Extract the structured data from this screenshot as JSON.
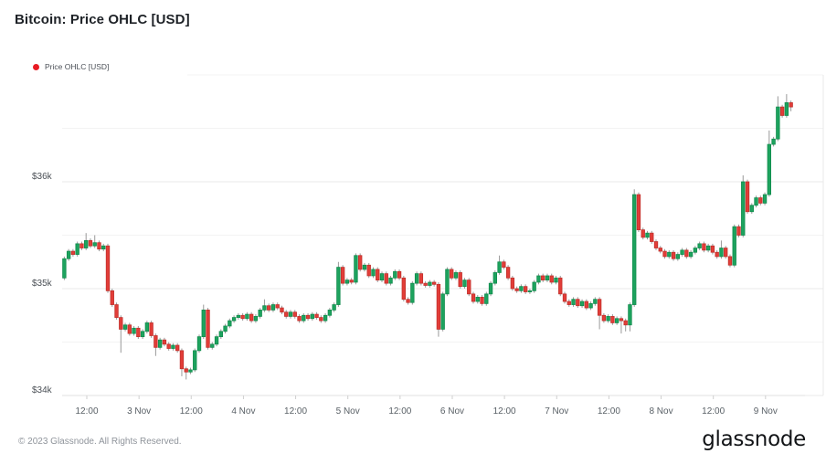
{
  "header": {
    "title": "Bitcoin: Price OHLC [USD]"
  },
  "legend": {
    "label": "Price OHLC [USD]",
    "dot_color": "#e81c24"
  },
  "footer": {
    "copyright": "© 2023 Glassnode. All Rights Reserved.",
    "brand": "glassnode"
  },
  "chart_data": {
    "type": "candlestick",
    "title": "Bitcoin: Price OHLC [USD]",
    "series_name": "Price OHLC [USD]",
    "unit": "USD thousands",
    "candle_interval_hours": 1,
    "x_tick_labels": [
      "12:00",
      "3 Nov",
      "12:00",
      "4 Nov",
      "12:00",
      "5 Nov",
      "12:00",
      "6 Nov",
      "12:00",
      "7 Nov",
      "12:00",
      "8 Nov",
      "12:00",
      "9 Nov"
    ],
    "y_axis": {
      "labels": [
        "$36k",
        "$35k",
        "$34k"
      ],
      "prices": [
        36,
        35,
        34
      ]
    },
    "minor_gridline_prices": [
      34.5,
      35.5,
      36.5,
      37
    ],
    "ylim": [
      33.95,
      37.1
    ],
    "grid": true,
    "legend_position": "top-left",
    "colors": {
      "up": "#1da35e",
      "up_border": "#0f8a4b",
      "down": "#e23d38",
      "down_border": "#bf2f2a",
      "wick": "#999999",
      "grid_major": "#e9e9e9",
      "grid_minor": "#f3f3f3",
      "axis_line": "#e2e2e2",
      "tick": "#cfcfcf",
      "axis_text": "#596066",
      "y_text": "#4a4f55"
    },
    "candles": [
      [
        35.1,
        35.3,
        35.08,
        35.28
      ],
      [
        35.28,
        35.37,
        35.26,
        35.35
      ],
      [
        35.35,
        35.37,
        35.3,
        35.32
      ],
      [
        35.32,
        35.44,
        35.3,
        35.42
      ],
      [
        35.42,
        35.44,
        35.36,
        35.38
      ],
      [
        35.38,
        35.52,
        35.36,
        35.45
      ],
      [
        35.45,
        35.47,
        35.38,
        35.4
      ],
      [
        35.4,
        35.5,
        35.38,
        35.43
      ],
      [
        35.43,
        35.45,
        35.35,
        35.37
      ],
      [
        35.37,
        35.42,
        35.35,
        35.4
      ],
      [
        35.4,
        35.42,
        34.96,
        34.98
      ],
      [
        34.98,
        35.0,
        34.83,
        34.85
      ],
      [
        34.85,
        34.87,
        34.71,
        34.73
      ],
      [
        34.73,
        34.75,
        34.4,
        34.62
      ],
      [
        34.62,
        34.68,
        34.6,
        34.66
      ],
      [
        34.66,
        34.68,
        34.56,
        34.58
      ],
      [
        34.58,
        34.65,
        34.56,
        34.63
      ],
      [
        34.63,
        34.65,
        34.53,
        34.55
      ],
      [
        34.55,
        34.62,
        34.53,
        34.6
      ],
      [
        34.6,
        34.7,
        34.58,
        34.68
      ],
      [
        34.68,
        34.7,
        34.54,
        34.56
      ],
      [
        34.56,
        34.58,
        34.37,
        34.45
      ],
      [
        34.45,
        34.54,
        34.43,
        34.52
      ],
      [
        34.52,
        34.54,
        34.46,
        34.48
      ],
      [
        34.48,
        34.5,
        34.42,
        34.44
      ],
      [
        34.44,
        34.49,
        34.42,
        34.47
      ],
      [
        34.47,
        34.49,
        34.4,
        34.42
      ],
      [
        34.42,
        34.44,
        34.18,
        34.25
      ],
      [
        34.25,
        34.27,
        34.15,
        34.22
      ],
      [
        34.22,
        34.26,
        34.2,
        34.24
      ],
      [
        34.24,
        34.44,
        34.22,
        34.42
      ],
      [
        34.42,
        34.57,
        34.4,
        34.55
      ],
      [
        34.55,
        34.85,
        34.53,
        34.8
      ],
      [
        34.8,
        34.82,
        34.43,
        34.45
      ],
      [
        34.45,
        34.5,
        34.43,
        34.48
      ],
      [
        34.48,
        34.57,
        34.46,
        34.55
      ],
      [
        34.55,
        34.62,
        34.53,
        34.6
      ],
      [
        34.6,
        34.67,
        34.58,
        34.65
      ],
      [
        34.65,
        34.72,
        34.63,
        34.7
      ],
      [
        34.7,
        34.75,
        34.68,
        34.73
      ],
      [
        34.73,
        34.77,
        34.71,
        34.75
      ],
      [
        34.75,
        34.77,
        34.7,
        34.72
      ],
      [
        34.72,
        34.78,
        34.7,
        34.76
      ],
      [
        34.76,
        34.78,
        34.68,
        34.7
      ],
      [
        34.7,
        34.76,
        34.68,
        34.74
      ],
      [
        34.74,
        34.82,
        34.72,
        34.8
      ],
      [
        34.8,
        34.9,
        34.78,
        34.84
      ],
      [
        34.84,
        34.86,
        34.78,
        34.8
      ],
      [
        34.8,
        34.87,
        34.78,
        34.85
      ],
      [
        34.85,
        34.87,
        34.8,
        34.82
      ],
      [
        34.82,
        34.84,
        34.76,
        34.78
      ],
      [
        34.78,
        34.8,
        34.72,
        34.74
      ],
      [
        34.74,
        34.8,
        34.72,
        34.78
      ],
      [
        34.78,
        34.8,
        34.72,
        34.74
      ],
      [
        34.74,
        34.76,
        34.68,
        34.7
      ],
      [
        34.7,
        34.77,
        34.68,
        34.75
      ],
      [
        34.75,
        34.77,
        34.7,
        34.72
      ],
      [
        34.72,
        34.78,
        34.7,
        34.76
      ],
      [
        34.76,
        34.78,
        34.71,
        34.73
      ],
      [
        34.73,
        34.75,
        34.68,
        34.7
      ],
      [
        34.7,
        34.77,
        34.68,
        34.75
      ],
      [
        34.75,
        34.82,
        34.73,
        34.8
      ],
      [
        34.8,
        34.87,
        34.78,
        34.85
      ],
      [
        34.85,
        35.25,
        34.83,
        35.2
      ],
      [
        35.2,
        35.22,
        35.03,
        35.05
      ],
      [
        35.05,
        35.1,
        35.03,
        35.08
      ],
      [
        35.08,
        35.1,
        35.04,
        35.06
      ],
      [
        35.06,
        35.33,
        35.04,
        35.31
      ],
      [
        35.31,
        35.33,
        35.16,
        35.18
      ],
      [
        35.18,
        35.24,
        35.16,
        35.22
      ],
      [
        35.22,
        35.24,
        35.1,
        35.12
      ],
      [
        35.12,
        35.2,
        35.1,
        35.18
      ],
      [
        35.18,
        35.2,
        35.06,
        35.08
      ],
      [
        35.08,
        35.16,
        35.06,
        35.14
      ],
      [
        35.14,
        35.16,
        35.03,
        35.05
      ],
      [
        35.05,
        35.12,
        35.03,
        35.1
      ],
      [
        35.1,
        35.18,
        35.08,
        35.16
      ],
      [
        35.16,
        35.18,
        35.08,
        35.1
      ],
      [
        35.1,
        35.12,
        34.88,
        34.9
      ],
      [
        34.9,
        34.92,
        34.85,
        34.87
      ],
      [
        34.87,
        35.07,
        34.85,
        35.05
      ],
      [
        35.05,
        35.16,
        35.03,
        35.14
      ],
      [
        35.14,
        35.16,
        35.03,
        35.05
      ],
      [
        35.05,
        35.07,
        35.01,
        35.03
      ],
      [
        35.03,
        35.08,
        35.01,
        35.06
      ],
      [
        35.06,
        35.08,
        35.02,
        35.04
      ],
      [
        35.04,
        35.06,
        34.55,
        34.62
      ],
      [
        34.62,
        34.97,
        34.6,
        34.95
      ],
      [
        34.95,
        35.2,
        34.93,
        35.18
      ],
      [
        35.18,
        35.2,
        35.08,
        35.1
      ],
      [
        35.1,
        35.17,
        35.08,
        35.15
      ],
      [
        35.15,
        35.17,
        35.0,
        35.02
      ],
      [
        35.02,
        35.1,
        35.0,
        35.08
      ],
      [
        35.08,
        35.1,
        34.93,
        34.95
      ],
      [
        34.95,
        34.97,
        34.86,
        34.88
      ],
      [
        34.88,
        34.94,
        34.86,
        34.92
      ],
      [
        34.92,
        34.94,
        34.84,
        34.86
      ],
      [
        34.86,
        34.97,
        34.84,
        34.95
      ],
      [
        34.95,
        35.07,
        34.93,
        35.05
      ],
      [
        35.05,
        35.17,
        35.03,
        35.15
      ],
      [
        35.15,
        35.31,
        35.13,
        35.25
      ],
      [
        35.25,
        35.27,
        35.18,
        35.2
      ],
      [
        35.2,
        35.22,
        35.08,
        35.1
      ],
      [
        35.1,
        35.12,
        34.98,
        35.0
      ],
      [
        35.0,
        35.02,
        34.96,
        34.98
      ],
      [
        34.98,
        35.04,
        34.96,
        35.02
      ],
      [
        35.02,
        35.04,
        34.95,
        34.97
      ],
      [
        34.97,
        35.0,
        34.95,
        34.98
      ],
      [
        34.98,
        35.08,
        34.96,
        35.06
      ],
      [
        35.06,
        35.14,
        35.04,
        35.12
      ],
      [
        35.12,
        35.14,
        35.06,
        35.08
      ],
      [
        35.08,
        35.14,
        35.06,
        35.12
      ],
      [
        35.12,
        35.14,
        35.04,
        35.06
      ],
      [
        35.06,
        35.12,
        35.04,
        35.1
      ],
      [
        35.1,
        35.12,
        34.93,
        34.95
      ],
      [
        34.95,
        34.97,
        34.86,
        34.88
      ],
      [
        34.88,
        34.9,
        34.83,
        34.85
      ],
      [
        34.85,
        34.92,
        34.83,
        34.9
      ],
      [
        34.9,
        34.92,
        34.82,
        34.84
      ],
      [
        34.84,
        34.9,
        34.82,
        34.88
      ],
      [
        34.88,
        34.9,
        34.8,
        34.82
      ],
      [
        34.82,
        34.88,
        34.8,
        34.86
      ],
      [
        34.86,
        34.92,
        34.84,
        34.9
      ],
      [
        34.9,
        34.92,
        34.62,
        34.75
      ],
      [
        34.75,
        34.77,
        34.68,
        34.7
      ],
      [
        34.7,
        34.76,
        34.68,
        34.74
      ],
      [
        34.74,
        34.76,
        34.66,
        34.68
      ],
      [
        34.68,
        34.74,
        34.66,
        34.72
      ],
      [
        34.72,
        34.74,
        34.58,
        34.7
      ],
      [
        34.7,
        34.72,
        34.6,
        34.66
      ],
      [
        34.66,
        34.87,
        34.6,
        34.85
      ],
      [
        34.85,
        35.93,
        34.83,
        35.88
      ],
      [
        35.88,
        35.9,
        35.53,
        35.55
      ],
      [
        35.55,
        35.57,
        35.46,
        35.48
      ],
      [
        35.48,
        35.54,
        35.46,
        35.52
      ],
      [
        35.52,
        35.54,
        35.42,
        35.44
      ],
      [
        35.44,
        35.46,
        35.36,
        35.38
      ],
      [
        35.38,
        35.4,
        35.33,
        35.35
      ],
      [
        35.35,
        35.37,
        35.28,
        35.3
      ],
      [
        35.3,
        35.36,
        35.28,
        35.34
      ],
      [
        35.34,
        35.36,
        35.26,
        35.28
      ],
      [
        35.28,
        35.34,
        35.26,
        35.32
      ],
      [
        35.32,
        35.38,
        35.3,
        35.36
      ],
      [
        35.36,
        35.38,
        35.28,
        35.3
      ],
      [
        35.3,
        35.36,
        35.28,
        35.34
      ],
      [
        35.34,
        35.4,
        35.32,
        35.38
      ],
      [
        35.38,
        35.44,
        35.36,
        35.42
      ],
      [
        35.42,
        35.44,
        35.34,
        35.36
      ],
      [
        35.36,
        35.42,
        35.34,
        35.4
      ],
      [
        35.4,
        35.42,
        35.32,
        35.34
      ],
      [
        35.34,
        35.36,
        35.28,
        35.3
      ],
      [
        35.3,
        35.45,
        35.28,
        35.38
      ],
      [
        35.38,
        35.4,
        35.28,
        35.3
      ],
      [
        35.3,
        35.32,
        35.2,
        35.22
      ],
      [
        35.22,
        35.6,
        35.2,
        35.58
      ],
      [
        35.58,
        35.6,
        35.48,
        35.5
      ],
      [
        35.5,
        36.06,
        35.48,
        36.0
      ],
      [
        36.0,
        36.02,
        35.7,
        35.72
      ],
      [
        35.72,
        35.8,
        35.7,
        35.78
      ],
      [
        35.78,
        35.87,
        35.76,
        35.85
      ],
      [
        35.85,
        35.87,
        35.78,
        35.8
      ],
      [
        35.8,
        35.9,
        35.78,
        35.88
      ],
      [
        35.88,
        36.48,
        35.86,
        36.35
      ],
      [
        36.35,
        36.42,
        36.33,
        36.4
      ],
      [
        36.4,
        36.8,
        36.38,
        36.7
      ],
      [
        36.7,
        36.72,
        36.6,
        36.62
      ],
      [
        36.62,
        36.82,
        36.6,
        36.74
      ],
      [
        36.74,
        36.76,
        36.66,
        36.7
      ]
    ]
  }
}
